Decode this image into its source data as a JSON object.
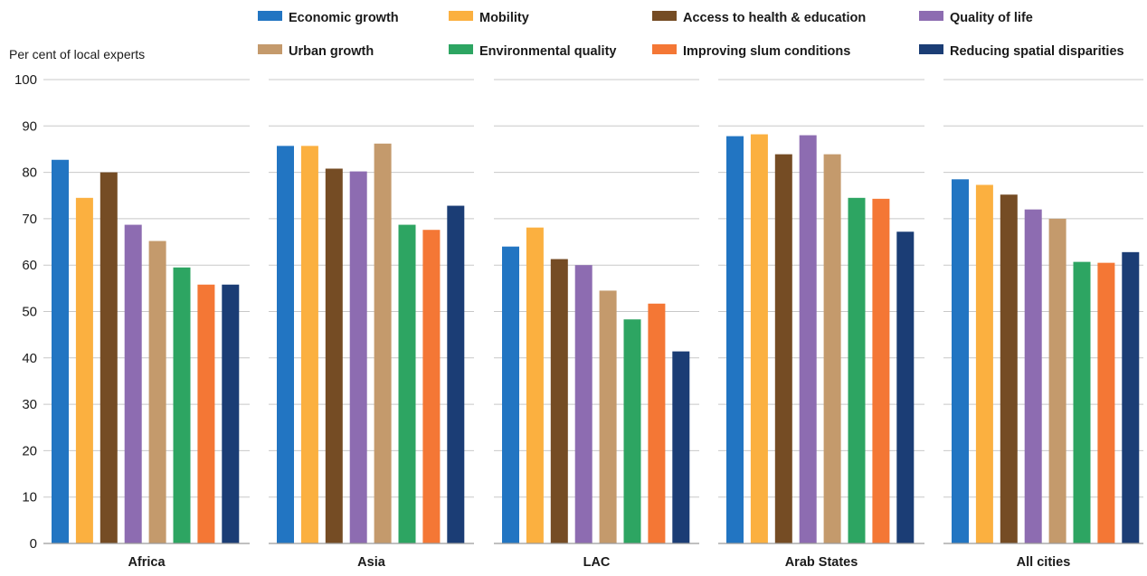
{
  "chart_data": {
    "type": "bar",
    "ylabel": "Per cent of local experts",
    "ylim": [
      0,
      100
    ],
    "yticks": [
      0,
      10,
      20,
      30,
      40,
      50,
      60,
      70,
      80,
      90,
      100
    ],
    "grid": true,
    "legend_position": "top",
    "categories": [
      "Africa",
      "Asia",
      "LAC",
      "Arab States",
      "All cities"
    ],
    "series": [
      {
        "name": "Economic growth",
        "color": "#2275c2",
        "values": [
          82.7,
          85.7,
          64.0,
          87.8,
          78.5
        ]
      },
      {
        "name": "Mobility",
        "color": "#fbb040",
        "values": [
          74.5,
          85.7,
          68.1,
          88.2,
          77.3
        ]
      },
      {
        "name": "Access to health & education",
        "color": "#754c24",
        "values": [
          80.0,
          80.8,
          61.3,
          83.9,
          75.2
        ]
      },
      {
        "name": "Quality of life",
        "color": "#8d6cb1",
        "values": [
          68.7,
          80.2,
          60.0,
          88.0,
          72.0
        ]
      },
      {
        "name": "Urban growth",
        "color": "#c49a6c",
        "values": [
          65.2,
          86.2,
          54.5,
          83.9,
          70.0
        ]
      },
      {
        "name": "Environmental quality",
        "color": "#2da562",
        "values": [
          59.5,
          68.7,
          48.3,
          74.5,
          60.7
        ]
      },
      {
        "name": "Improving slum conditions",
        "color": "#f47735",
        "values": [
          55.8,
          67.6,
          51.7,
          74.3,
          60.5
        ]
      },
      {
        "name": "Reducing spatial disparities",
        "color": "#1b3d75",
        "values": [
          55.8,
          72.8,
          41.4,
          67.2,
          62.8
        ]
      }
    ]
  }
}
